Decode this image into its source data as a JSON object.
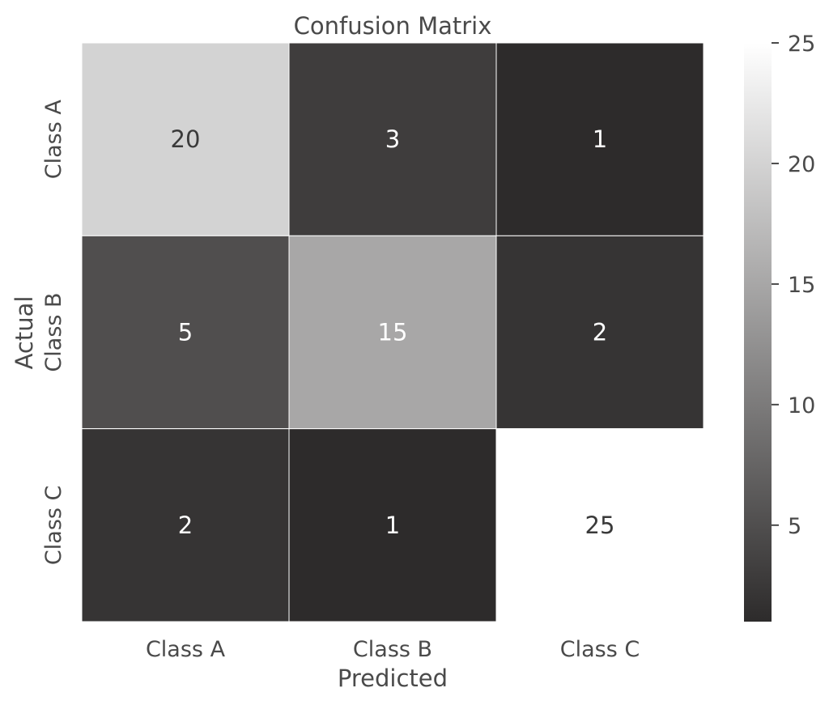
{
  "chart_data": {
    "type": "heatmap",
    "title": "Confusion Matrix",
    "xlabel": "Predicted",
    "ylabel": "Actual",
    "x_categories": [
      "Class A",
      "Class B",
      "Class C"
    ],
    "y_categories": [
      "Class A",
      "Class B",
      "Class C"
    ],
    "values": [
      [
        20,
        3,
        1
      ],
      [
        5,
        15,
        2
      ],
      [
        2,
        1,
        25
      ]
    ],
    "colorbar": {
      "range": [
        1,
        25
      ],
      "ticks": [
        5,
        10,
        15,
        20,
        25
      ],
      "tick_labels": [
        "5",
        "10",
        "15",
        "20",
        "25"
      ],
      "colormap": [
        "#2d2b2b",
        "#ffffff"
      ]
    },
    "annotations": true,
    "grid": false
  }
}
